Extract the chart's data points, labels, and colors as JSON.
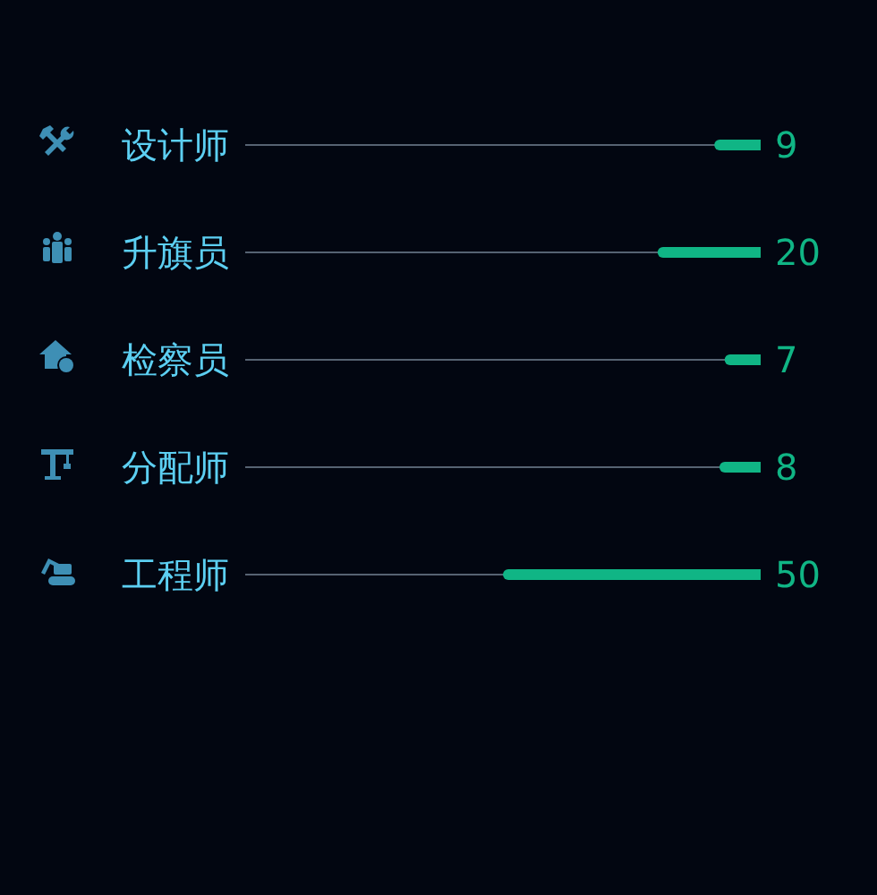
{
  "chart_data": {
    "type": "bar",
    "orientation": "horizontal",
    "categories": [
      "设计师",
      "升旗员",
      "检察员",
      "分配师",
      "工程师"
    ],
    "values": [
      9,
      20,
      7,
      8,
      50
    ],
    "color": "#10b585",
    "xlim": [
      100,
      0
    ],
    "tick_labels": "y",
    "grid": "y",
    "data_labels": true
  }
}
